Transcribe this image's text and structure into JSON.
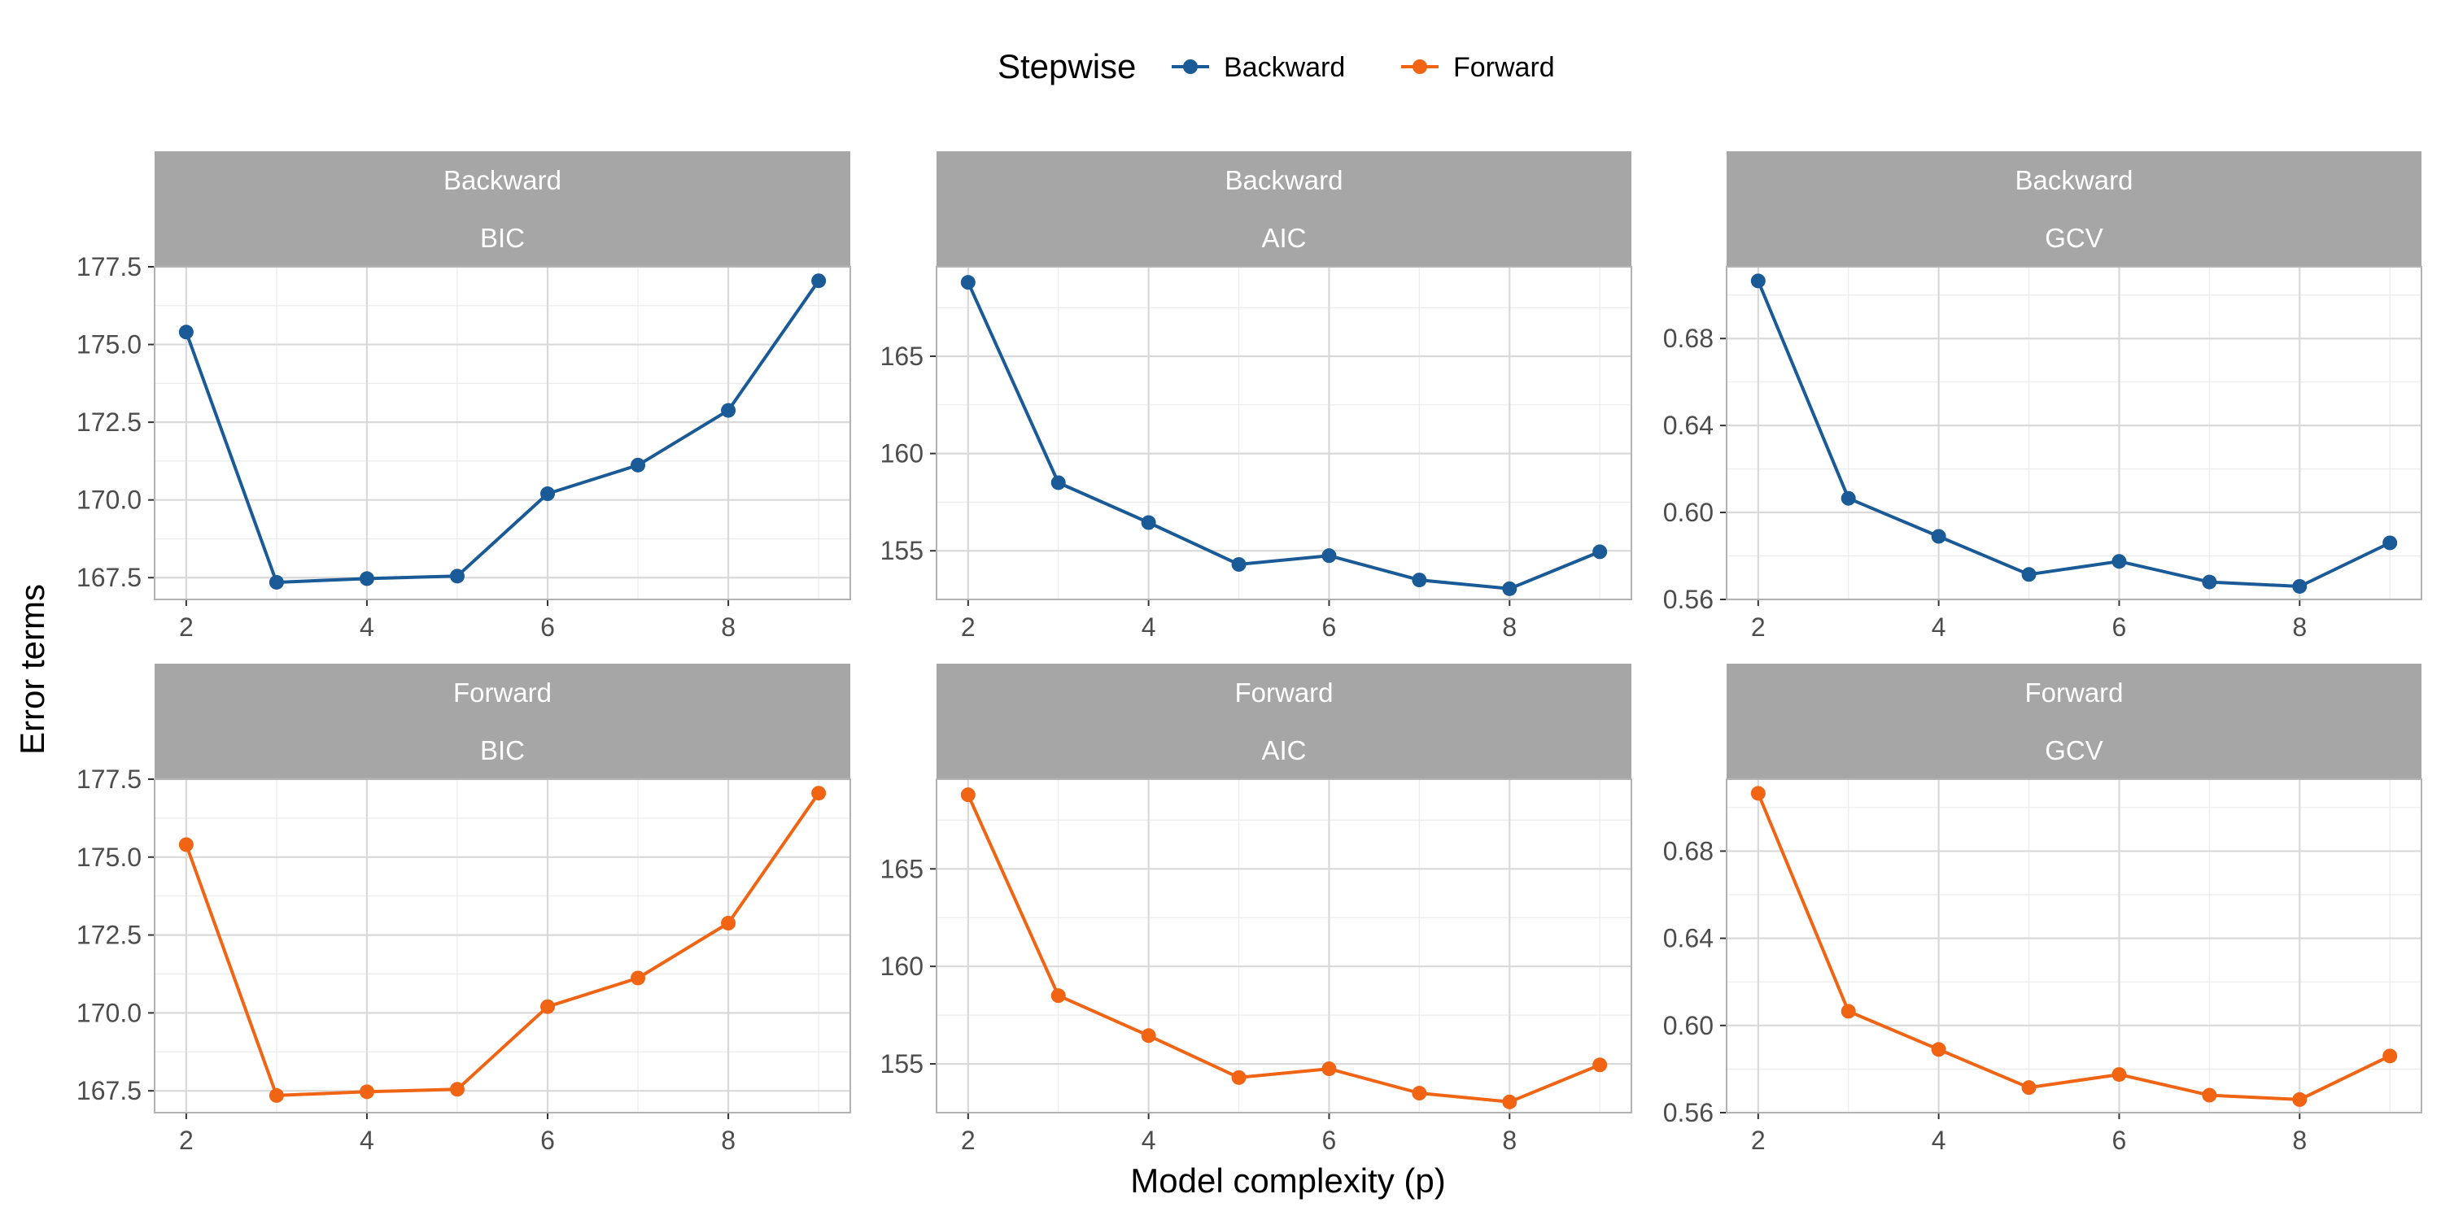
{
  "chart_data": {
    "type": "line",
    "xlabel": "Model complexity (p)",
    "ylabel": "Error terms",
    "legend": {
      "title": "Stepwise",
      "placement": "top",
      "entries": [
        {
          "name": "Backward",
          "color": "#1a5a96"
        },
        {
          "name": "Forward",
          "color": "#f06414"
        }
      ]
    },
    "grid": true,
    "x": [
      2,
      3,
      4,
      5,
      6,
      7,
      8,
      9
    ],
    "x_ticks": [
      2,
      4,
      6,
      8
    ],
    "xlim": [
      1.65,
      9.35
    ],
    "panels": [
      {
        "row": "Backward",
        "col": "BIC",
        "color": "#1a5a96",
        "values": [
          175.4,
          167.35,
          167.47,
          167.55,
          170.2,
          171.12,
          172.88,
          177.05
        ],
        "ylim": [
          166.8,
          177.5
        ],
        "y_ticks": [
          167.5,
          170.0,
          172.5,
          175.0,
          177.5
        ],
        "y_tick_labels": [
          "167.5",
          "170.0",
          "172.5",
          "175.0",
          "177.5"
        ]
      },
      {
        "row": "Backward",
        "col": "AIC",
        "color": "#1a5a96",
        "values": [
          168.8,
          158.5,
          156.45,
          154.3,
          154.75,
          153.5,
          153.05,
          154.95
        ],
        "ylim": [
          152.5,
          169.6
        ],
        "y_ticks": [
          155,
          160,
          165
        ],
        "y_tick_labels": [
          "155",
          "160",
          "165"
        ]
      },
      {
        "row": "Backward",
        "col": "GCV",
        "color": "#1a5a96",
        "values": [
          0.7065,
          0.6065,
          0.589,
          0.5715,
          0.5775,
          0.568,
          0.566,
          0.586
        ],
        "ylim": [
          0.56,
          0.713
        ],
        "y_ticks": [
          0.56,
          0.6,
          0.64,
          0.68
        ],
        "y_tick_labels": [
          "0.56",
          "0.60",
          "0.64",
          "0.68"
        ]
      },
      {
        "row": "Forward",
        "col": "BIC",
        "color": "#f06414",
        "values": [
          175.4,
          167.35,
          167.47,
          167.55,
          170.2,
          171.12,
          172.88,
          177.05
        ],
        "ylim": [
          166.8,
          177.5
        ],
        "y_ticks": [
          167.5,
          170.0,
          172.5,
          175.0,
          177.5
        ],
        "y_tick_labels": [
          "167.5",
          "170.0",
          "172.5",
          "175.0",
          "177.5"
        ]
      },
      {
        "row": "Forward",
        "col": "AIC",
        "color": "#f06414",
        "values": [
          168.8,
          158.5,
          156.45,
          154.3,
          154.75,
          153.5,
          153.05,
          154.95
        ],
        "ylim": [
          152.5,
          169.6
        ],
        "y_ticks": [
          155,
          160,
          165
        ],
        "y_tick_labels": [
          "155",
          "160",
          "165"
        ]
      },
      {
        "row": "Forward",
        "col": "GCV",
        "color": "#f06414",
        "values": [
          0.7065,
          0.6065,
          0.589,
          0.5715,
          0.5775,
          0.568,
          0.566,
          0.586
        ],
        "ylim": [
          0.56,
          0.713
        ],
        "y_ticks": [
          0.56,
          0.6,
          0.64,
          0.68
        ],
        "y_tick_labels": [
          "0.56",
          "0.60",
          "0.64",
          "0.68"
        ]
      }
    ]
  }
}
